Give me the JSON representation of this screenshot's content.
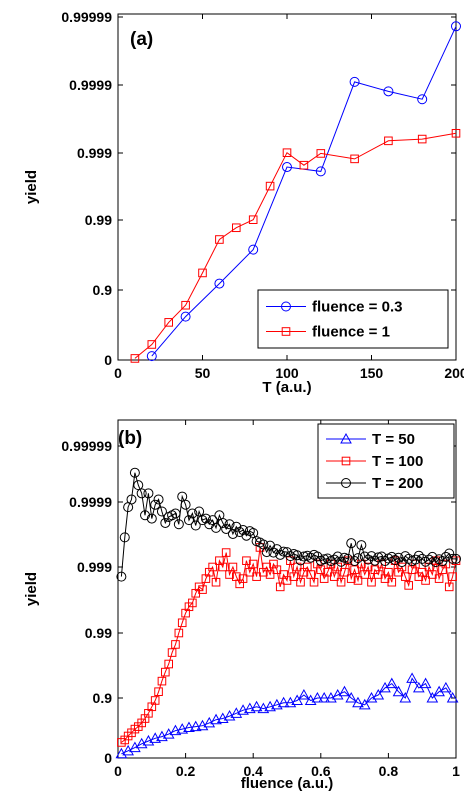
{
  "chart_data": [
    {
      "type": "line",
      "panel_label": "(a)",
      "xlabel": "T (a.u.)",
      "ylabel": "yield",
      "xlim": [
        0,
        200
      ],
      "y_scale": "log(1 - yield)",
      "y_ticks": [
        "0",
        "0.9",
        "0.99",
        "0.999",
        "0.9999",
        "0.99999"
      ],
      "x_ticks": [
        "0",
        "50",
        "100",
        "150",
        "200"
      ],
      "legend_position": "bottom-right",
      "series": [
        {
          "name": "fluence = 0.3",
          "color": "#0000ff",
          "marker": "circle",
          "x": [
            20,
            40,
            60,
            80,
            100,
            120,
            140,
            160,
            180,
            200
          ],
          "y": [
            0.12,
            0.76,
            0.919,
            0.9735,
            0.99838,
            0.99812,
            0.99991,
            0.999876,
            0.999838,
            0.9999863
          ]
        },
        {
          "name": "fluence = 1",
          "color": "#ff0000",
          "marker": "square",
          "x": [
            10,
            20,
            30,
            40,
            50,
            60,
            70,
            80,
            90,
            100,
            110,
            120,
            140,
            160,
            180,
            200
          ],
          "y": [
            0.05,
            0.4,
            0.71,
            0.835,
            0.943,
            0.981,
            0.9871,
            0.9901,
            0.99688,
            0.99901,
            0.998478,
            0.998985,
            0.998777,
            0.999338,
            0.999376,
            0.999487
          ]
        }
      ]
    },
    {
      "type": "line",
      "panel_label": "(b)",
      "xlabel": "fluence (a.u.)",
      "ylabel": "yield",
      "xlim": [
        0,
        1
      ],
      "y_scale": "log(1 - yield)",
      "y_ticks": [
        "0",
        "0.9",
        "0.99",
        "0.999",
        "0.9999",
        "0.99999"
      ],
      "x_ticks": [
        "0",
        "0.2",
        "0.4",
        "0.6",
        "0.8",
        "1"
      ],
      "legend_position": "top-right",
      "series": [
        {
          "name": "T = 50",
          "color": "#0000ff",
          "marker": "triangle",
          "x": [
            0.01,
            0.03,
            0.05,
            0.07,
            0.09,
            0.11,
            0.13,
            0.15,
            0.17,
            0.19,
            0.21,
            0.23,
            0.25,
            0.27,
            0.29,
            0.31,
            0.33,
            0.35,
            0.37,
            0.39,
            0.41,
            0.43,
            0.45,
            0.47,
            0.49,
            0.51,
            0.53,
            0.55,
            0.57,
            0.59,
            0.61,
            0.63,
            0.65,
            0.67,
            0.69,
            0.71,
            0.73,
            0.75,
            0.77,
            0.79,
            0.81,
            0.83,
            0.85,
            0.87,
            0.89,
            0.91,
            0.93,
            0.95,
            0.97,
            0.99
          ],
          "y": [
            0.15,
            0.24,
            0.33,
            0.42,
            0.48,
            0.53,
            0.56,
            0.6,
            0.65,
            0.67,
            0.69,
            0.7,
            0.71,
            0.74,
            0.77,
            0.78,
            0.8,
            0.82,
            0.84,
            0.85,
            0.86,
            0.85,
            0.86,
            0.87,
            0.88,
            0.88,
            0.89,
            0.91,
            0.89,
            0.9,
            0.9,
            0.9,
            0.91,
            0.92,
            0.9,
            0.88,
            0.87,
            0.9,
            0.91,
            0.93,
            0.94,
            0.92,
            0.9,
            0.95,
            0.93,
            0.94,
            0.9,
            0.92,
            0.93,
            0.9
          ]
        },
        {
          "name": "T = 100",
          "color": "#ff0000",
          "marker": "square",
          "x": [
            0.01,
            0.02,
            0.03,
            0.04,
            0.05,
            0.06,
            0.07,
            0.08,
            0.09,
            0.1,
            0.11,
            0.12,
            0.13,
            0.14,
            0.15,
            0.16,
            0.17,
            0.18,
            0.19,
            0.2,
            0.21,
            0.22,
            0.23,
            0.24,
            0.25,
            0.26,
            0.27,
            0.28,
            0.29,
            0.3,
            0.31,
            0.32,
            0.33,
            0.34,
            0.35,
            0.36,
            0.37,
            0.38,
            0.39,
            0.4,
            0.41,
            0.42,
            0.43,
            0.44,
            0.45,
            0.46,
            0.47,
            0.48,
            0.49,
            0.5,
            0.51,
            0.52,
            0.53,
            0.54,
            0.55,
            0.56,
            0.57,
            0.58,
            0.59,
            0.6,
            0.61,
            0.62,
            0.63,
            0.64,
            0.65,
            0.66,
            0.67,
            0.68,
            0.69,
            0.7,
            0.71,
            0.72,
            0.73,
            0.74,
            0.75,
            0.76,
            0.77,
            0.78,
            0.79,
            0.8,
            0.81,
            0.82,
            0.83,
            0.84,
            0.85,
            0.86,
            0.87,
            0.88,
            0.89,
            0.9,
            0.91,
            0.92,
            0.93,
            0.94,
            0.95,
            0.96,
            0.97,
            0.98,
            0.99,
            1.0
          ],
          "y": [
            0.45,
            0.5,
            0.57,
            0.62,
            0.67,
            0.7,
            0.74,
            0.78,
            0.82,
            0.86,
            0.89,
            0.92,
            0.945,
            0.96,
            0.97,
            0.98,
            0.985,
            0.99,
            0.993,
            0.995,
            0.996,
            0.9965,
            0.9975,
            0.998,
            0.9978,
            0.9985,
            0.9988,
            0.999,
            0.9983,
            0.9992,
            0.999,
            0.9994,
            0.9987,
            0.999,
            0.9986,
            0.9982,
            0.9985,
            0.9992,
            0.9988,
            0.9991,
            0.9986,
            0.9995,
            0.9988,
            0.999,
            0.9987,
            0.9991,
            0.9989,
            0.998,
            0.9987,
            0.9984,
            0.9992,
            0.9986,
            0.999,
            0.9983,
            0.9988,
            0.999,
            0.9987,
            0.9983,
            0.9991,
            0.9989,
            0.9985,
            0.9988,
            0.9991,
            0.9986,
            0.999,
            0.9983,
            0.9988,
            0.9992,
            0.9985,
            0.9989,
            0.9984,
            0.9991,
            0.9987,
            0.999,
            0.9983,
            0.9989,
            0.9987,
            0.9991,
            0.9985,
            0.9988,
            0.9983,
            0.9992,
            0.9988,
            0.999,
            0.9986,
            0.9981,
            0.9989,
            0.9991,
            0.9986,
            0.9988,
            0.9984,
            0.999,
            0.9987,
            0.9992,
            0.9985,
            0.9989,
            0.9991,
            0.998,
            0.9986,
            0.9992
          ]
        },
        {
          "name": "T = 200",
          "color": "#000000",
          "marker": "circle",
          "x": [
            0.01,
            0.02,
            0.03,
            0.04,
            0.05,
            0.06,
            0.07,
            0.08,
            0.09,
            0.1,
            0.11,
            0.12,
            0.13,
            0.14,
            0.15,
            0.16,
            0.17,
            0.18,
            0.19,
            0.2,
            0.21,
            0.22,
            0.23,
            0.24,
            0.25,
            0.26,
            0.27,
            0.28,
            0.29,
            0.3,
            0.31,
            0.32,
            0.33,
            0.34,
            0.35,
            0.36,
            0.37,
            0.38,
            0.39,
            0.4,
            0.41,
            0.42,
            0.43,
            0.44,
            0.45,
            0.46,
            0.47,
            0.48,
            0.49,
            0.5,
            0.51,
            0.52,
            0.53,
            0.54,
            0.55,
            0.56,
            0.57,
            0.58,
            0.59,
            0.6,
            0.61,
            0.62,
            0.63,
            0.64,
            0.65,
            0.66,
            0.67,
            0.68,
            0.69,
            0.7,
            0.71,
            0.72,
            0.73,
            0.74,
            0.75,
            0.76,
            0.77,
            0.78,
            0.79,
            0.8,
            0.81,
            0.82,
            0.83,
            0.84,
            0.85,
            0.86,
            0.87,
            0.88,
            0.89,
            0.9,
            0.91,
            0.92,
            0.93,
            0.94,
            0.95,
            0.96,
            0.97,
            0.98,
            0.99,
            1.0
          ],
          "y": [
            0.9986,
            0.99965,
            0.99988,
            0.99991,
            0.99997,
            0.99995,
            0.99993,
            0.99984,
            0.99993,
            0.99982,
            0.99989,
            0.99991,
            0.99986,
            0.99979,
            0.99983,
            0.99984,
            0.99985,
            0.99978,
            0.99992,
            0.99989,
            0.99981,
            0.99985,
            0.99977,
            0.99986,
            0.99981,
            0.99982,
            0.99978,
            0.99981,
            0.99975,
            0.99984,
            0.99979,
            0.99974,
            0.99978,
            0.99969,
            0.99976,
            0.99971,
            0.99973,
            0.99967,
            0.99972,
            0.9997,
            0.9996,
            0.99958,
            0.99955,
            0.99941,
            0.99953,
            0.9994,
            0.99947,
            0.99935,
            0.99942,
            0.99941,
            0.99932,
            0.99937,
            0.99934,
            0.99921,
            0.99931,
            0.99933,
            0.99928,
            0.99935,
            0.99931,
            0.9992,
            0.99924,
            0.99926,
            0.99919,
            0.99923,
            0.99931,
            0.99917,
            0.99928,
            0.99925,
            0.99957,
            0.99919,
            0.99927,
            0.99954,
            0.99931,
            0.99923,
            0.99932,
            0.9992,
            0.99929,
            0.99931,
            0.99919,
            0.99926,
            0.9993,
            0.99922,
            0.99928,
            0.99916,
            0.99932,
            0.99925,
            0.99919,
            0.99923,
            0.99933,
            0.99925,
            0.99917,
            0.99923,
            0.9993,
            0.99916,
            0.99924,
            0.99919,
            0.9993,
            0.99938,
            0.99925,
            0.99925
          ]
        }
      ]
    }
  ]
}
